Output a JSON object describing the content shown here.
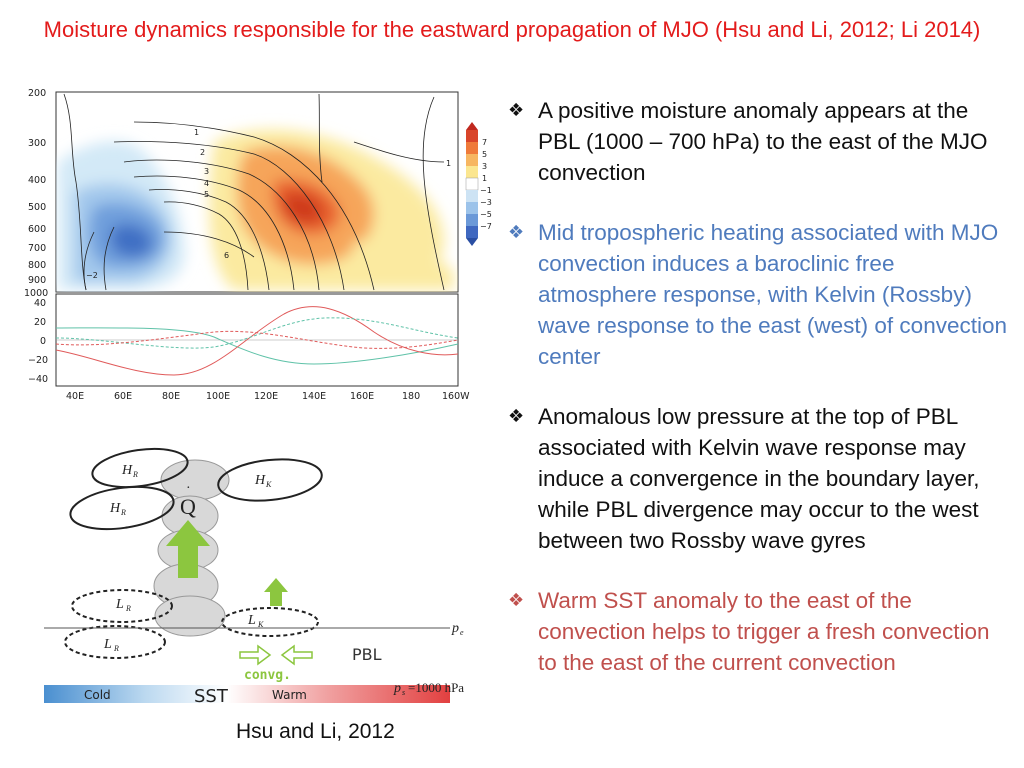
{
  "title": "Moisture dynamics responsible for the eastward propagation of MJO (Hsu and Li, 2012; Li 2014)",
  "bullet_mark": "❖",
  "bullets": [
    "A positive moisture anomaly appears at the PBL (1000 – 700 hPa) to the east of the MJO convection",
    "Mid tropospheric heating associated with MJO convection induces a baroclinic free atmosphere response, with Kelvin (Rossby) wave response to the east (west) of convection center",
    "Anomalous low pressure at the top of PBL associated with Kelvin wave response may induce a convergence in the boundary layer, while PBL divergence may occur to the west between two Rossby wave gyres",
    "Warm SST anomaly to the east of the convection helps to trigger a fresh convection to the east of the current convection"
  ],
  "colors": {
    "title": "#e31b1b",
    "bullet_blue": "#4f7bbd",
    "bullet_red": "#c0504d"
  },
  "caption": "Hsu and Li, 2012",
  "chart_data": {
    "type": "heatmap",
    "x_ticks": [
      "40E",
      "60E",
      "80E",
      "100E",
      "120E",
      "140E",
      "160E",
      "180",
      "160W"
    ],
    "top_panel": {
      "y_ticks": [
        "200",
        "300",
        "400",
        "500",
        "600",
        "700",
        "800",
        "900",
        "1000"
      ],
      "colorbar_labels": [
        "7",
        "5",
        "3",
        "1",
        "−1",
        "−3",
        "−5",
        "−7"
      ],
      "contour_labels": [
        "1",
        "2",
        "3",
        "4",
        "5",
        "6",
        "1",
        "−2"
      ]
    },
    "bottom_panel": {
      "y_ticks": [
        "40",
        "20",
        "0",
        "−20",
        "−40"
      ],
      "ylim": [
        -40,
        40
      ]
    }
  },
  "diagram": {
    "labels": {
      "hr1": "H",
      "hr1_sub": "R",
      "hk": "H",
      "hk_sub": "K",
      "hr2": "H",
      "hr2_sub": "R",
      "q": "Q",
      "lr1": "L",
      "lr1_sub": "R",
      "lr2": "L",
      "lr2_sub": "R",
      "lk": "L",
      "lk_sub": "K",
      "pe": "p",
      "pe_sub": "e",
      "ps": "p",
      "ps_sub": "s",
      "ps_val": "=1000  hPa",
      "pbl": "PBL",
      "convg": "convg.",
      "cold": "Cold",
      "sst": "SST",
      "warm": "Warm"
    }
  }
}
